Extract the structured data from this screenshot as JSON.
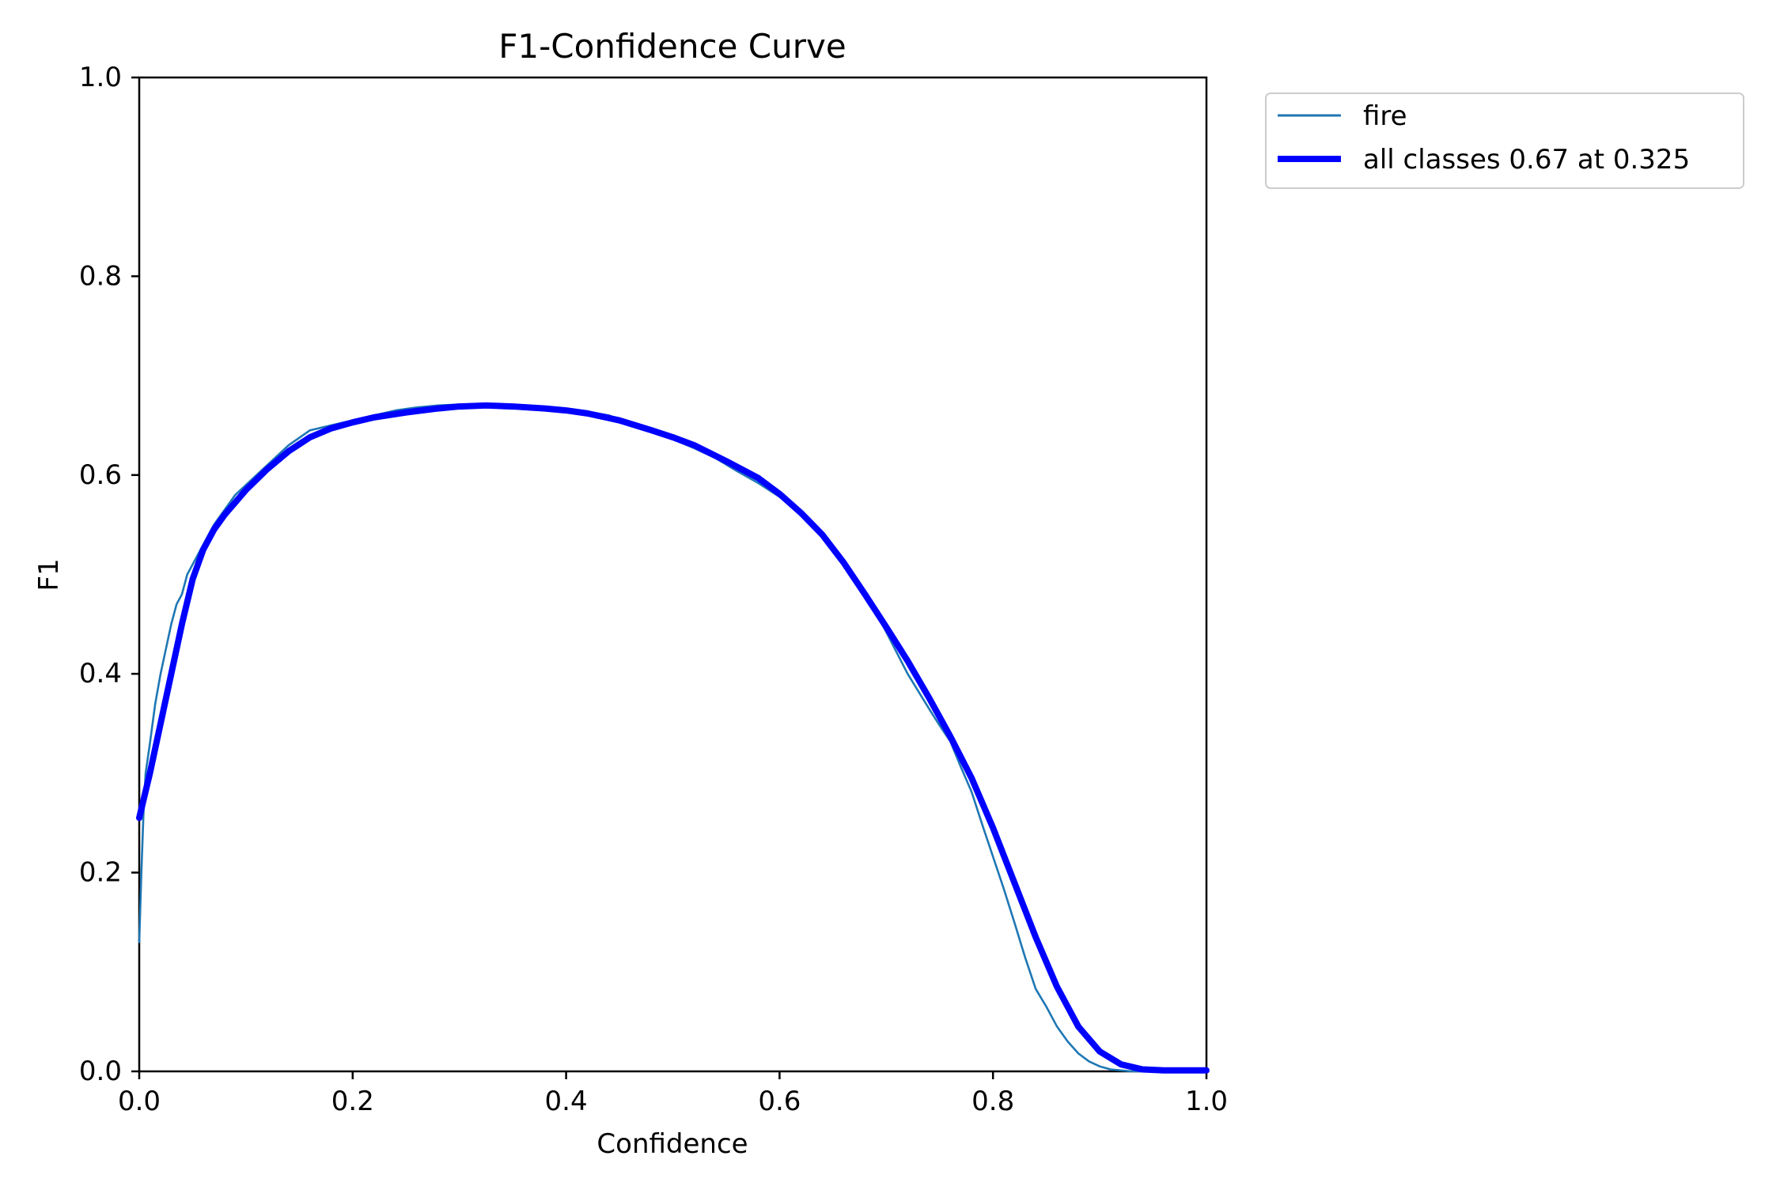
{
  "chart_data": {
    "type": "line",
    "title": "F1-Confidence Curve",
    "xlabel": "Confidence",
    "ylabel": "F1",
    "xlim": [
      0.0,
      1.0
    ],
    "ylim": [
      0.0,
      1.0
    ],
    "xticks": [
      "0.0",
      "0.2",
      "0.4",
      "0.6",
      "0.8",
      "1.0"
    ],
    "yticks": [
      "0.0",
      "0.2",
      "0.4",
      "0.6",
      "0.8",
      "1.0"
    ],
    "grid": false,
    "legend_position": "outside-top-right",
    "series": [
      {
        "name": "fire",
        "color": "#1f77b4",
        "x": [
          0.0,
          0.002,
          0.004,
          0.006,
          0.01,
          0.015,
          0.02,
          0.025,
          0.03,
          0.035,
          0.04,
          0.045,
          0.05,
          0.055,
          0.06,
          0.07,
          0.08,
          0.09,
          0.1,
          0.12,
          0.14,
          0.16,
          0.18,
          0.2,
          0.22,
          0.24,
          0.26,
          0.28,
          0.3,
          0.32,
          0.34,
          0.36,
          0.38,
          0.4,
          0.42,
          0.44,
          0.46,
          0.48,
          0.5,
          0.52,
          0.54,
          0.56,
          0.58,
          0.6,
          0.62,
          0.64,
          0.66,
          0.68,
          0.7,
          0.72,
          0.74,
          0.75,
          0.76,
          0.77,
          0.78,
          0.79,
          0.8,
          0.81,
          0.82,
          0.83,
          0.84,
          0.85,
          0.86,
          0.87,
          0.88,
          0.89,
          0.9,
          0.91,
          0.92,
          0.93,
          0.95,
          0.97,
          1.0
        ],
        "y": [
          0.13,
          0.2,
          0.26,
          0.3,
          0.33,
          0.37,
          0.4,
          0.425,
          0.45,
          0.47,
          0.48,
          0.5,
          0.51,
          0.52,
          0.53,
          0.55,
          0.565,
          0.58,
          0.59,
          0.61,
          0.63,
          0.645,
          0.65,
          0.655,
          0.66,
          0.665,
          0.668,
          0.67,
          0.671,
          0.67,
          0.669,
          0.668,
          0.667,
          0.666,
          0.664,
          0.66,
          0.652,
          0.644,
          0.636,
          0.627,
          0.617,
          0.604,
          0.592,
          0.578,
          0.562,
          0.542,
          0.515,
          0.482,
          0.442,
          0.4,
          0.365,
          0.348,
          0.332,
          0.306,
          0.281,
          0.248,
          0.216,
          0.184,
          0.15,
          0.115,
          0.083,
          0.065,
          0.045,
          0.03,
          0.018,
          0.01,
          0.005,
          0.002,
          0.001,
          0.0,
          0.0,
          0.0,
          0.0
        ]
      },
      {
        "name": "all classes 0.67 at 0.325",
        "color": "#0000ff",
        "x": [
          0.0,
          0.01,
          0.02,
          0.03,
          0.04,
          0.05,
          0.055,
          0.06,
          0.07,
          0.08,
          0.1,
          0.12,
          0.14,
          0.16,
          0.18,
          0.2,
          0.22,
          0.25,
          0.28,
          0.3,
          0.325,
          0.35,
          0.38,
          0.4,
          0.42,
          0.45,
          0.48,
          0.5,
          0.52,
          0.55,
          0.58,
          0.6,
          0.62,
          0.64,
          0.66,
          0.68,
          0.7,
          0.72,
          0.74,
          0.76,
          0.78,
          0.8,
          0.82,
          0.84,
          0.86,
          0.88,
          0.9,
          0.92,
          0.94,
          0.96,
          1.0
        ],
        "y": [
          0.255,
          0.3,
          0.35,
          0.4,
          0.45,
          0.495,
          0.51,
          0.525,
          0.545,
          0.56,
          0.585,
          0.606,
          0.624,
          0.638,
          0.647,
          0.653,
          0.658,
          0.663,
          0.667,
          0.669,
          0.67,
          0.669,
          0.667,
          0.665,
          0.662,
          0.655,
          0.645,
          0.638,
          0.63,
          0.614,
          0.597,
          0.581,
          0.562,
          0.54,
          0.512,
          0.48,
          0.447,
          0.413,
          0.376,
          0.337,
          0.295,
          0.245,
          0.19,
          0.135,
          0.085,
          0.045,
          0.02,
          0.007,
          0.002,
          0.001,
          0.001
        ]
      }
    ]
  }
}
